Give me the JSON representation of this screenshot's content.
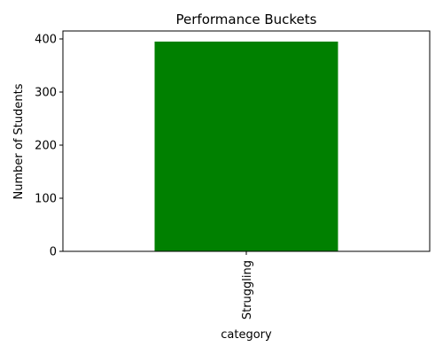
{
  "chart_data": {
    "type": "bar",
    "title": "Performance Buckets",
    "xlabel": "category",
    "ylabel": "Number of Students",
    "categories": [
      "Struggling"
    ],
    "values": [
      395
    ],
    "ylim": [
      0,
      415
    ],
    "yticks": [
      0,
      100,
      200,
      300,
      400
    ],
    "bar_color": "#008000",
    "grid": false,
    "legend": "none"
  }
}
